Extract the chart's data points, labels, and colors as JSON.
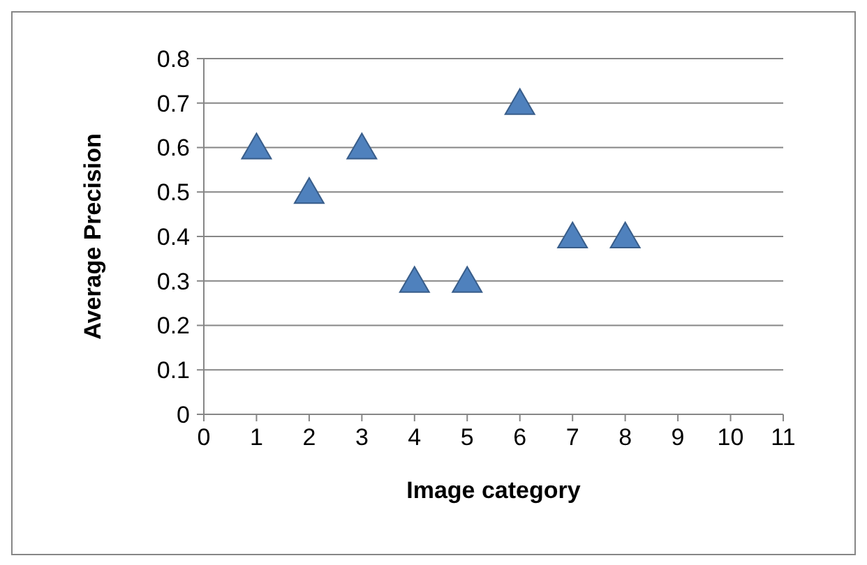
{
  "chart_data": {
    "type": "scatter",
    "xlabel": "Image category",
    "ylabel": "Average Precision",
    "x": [
      1,
      2,
      3,
      4,
      5,
      6,
      7,
      8
    ],
    "series": [
      {
        "color": "#4f81bd",
        "values": [
          0.6,
          0.5,
          0.6,
          0.3,
          0.3,
          0.7,
          0.4,
          0.4
        ]
      }
    ],
    "xlim": [
      0,
      11
    ],
    "xticks": [
      0,
      1,
      2,
      3,
      4,
      5,
      6,
      7,
      8,
      9,
      10,
      11
    ],
    "ylim": [
      0,
      0.8
    ],
    "yticks": [
      0,
      0.1,
      0.2,
      0.3,
      0.4,
      0.5,
      0.6,
      0.7,
      0.8
    ],
    "grid": "y",
    "marker": "triangle"
  }
}
